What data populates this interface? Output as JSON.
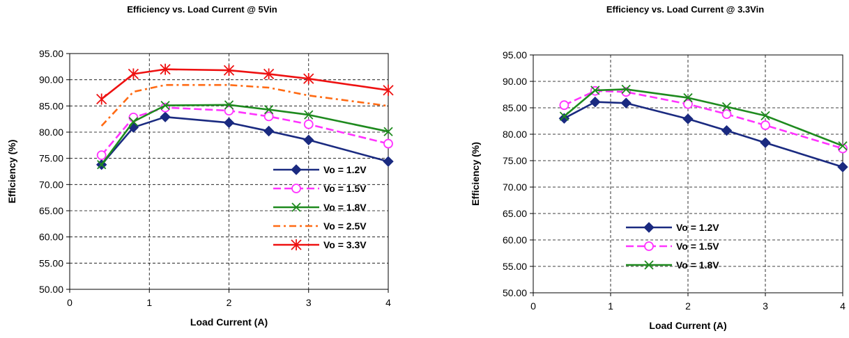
{
  "chart_data": [
    {
      "type": "line",
      "title": "Efficiency vs. Load Current  @ 5Vin",
      "xlabel": "Load Current (A)",
      "ylabel": "Efficiency (%)",
      "xlim": [
        0,
        4
      ],
      "ylim": [
        50,
        95
      ],
      "x_ticks": [
        "0",
        "1",
        "2",
        "3",
        "4"
      ],
      "y_ticks": [
        "50.00",
        "55.00",
        "60.00",
        "65.00",
        "70.00",
        "75.00",
        "80.00",
        "85.00",
        "90.00",
        "95.00"
      ],
      "grid": "dashed",
      "legend_position": "bottom-right",
      "series": [
        {
          "name": "Vo = 1.2V",
          "color": "#1a2a80",
          "dash": "solid",
          "marker": "diamond",
          "x": [
            0.4,
            0.8,
            1.2,
            2.0,
            2.5,
            3.0,
            4.0
          ],
          "y": [
            73.8,
            80.9,
            82.9,
            81.8,
            80.2,
            78.5,
            74.4
          ]
        },
        {
          "name": "Vo = 1.5V",
          "color": "#ff33ff",
          "dash": "dashed",
          "marker": "circle",
          "x": [
            0.4,
            0.8,
            1.2,
            2.0,
            2.5,
            3.0,
            4.0
          ],
          "y": [
            75.6,
            82.8,
            84.7,
            84.1,
            83.0,
            81.5,
            77.8
          ]
        },
        {
          "name": "Vo = 1.8V",
          "color": "#1e8a1e",
          "dash": "solid",
          "marker": "x",
          "x": [
            0.4,
            0.8,
            1.2,
            2.0,
            2.5,
            3.0,
            4.0
          ],
          "y": [
            73.8,
            82.0,
            85.1,
            85.2,
            84.3,
            83.3,
            80.1
          ]
        },
        {
          "name": "Vo = 2.5V",
          "color": "#ff6a13",
          "dash": "dashdot",
          "marker": "none",
          "x": [
            0.4,
            0.8,
            1.2,
            2.0,
            2.5,
            3.0,
            4.0
          ],
          "y": [
            81.2,
            87.7,
            89.0,
            89.0,
            88.5,
            87.0,
            85.0
          ]
        },
        {
          "name": "Vo = 3.3V",
          "color": "#ee1111",
          "dash": "solid",
          "marker": "star",
          "x": [
            0.4,
            0.8,
            1.2,
            2.0,
            2.5,
            3.0,
            4.0
          ],
          "y": [
            86.3,
            91.1,
            92.0,
            91.8,
            91.1,
            90.2,
            88.0
          ]
        }
      ]
    },
    {
      "type": "line",
      "title": "Efficiency vs. Load Current  @ 3.3Vin",
      "xlabel": "Load Current (A)",
      "ylabel": "Efficiency (%)",
      "xlim": [
        0,
        4
      ],
      "ylim": [
        50,
        95
      ],
      "x_ticks": [
        "0",
        "1",
        "2",
        "3",
        "4"
      ],
      "y_ticks": [
        "50.00",
        "55.00",
        "60.00",
        "65.00",
        "70.00",
        "75.00",
        "80.00",
        "85.00",
        "90.00",
        "95.00"
      ],
      "grid": "dashed",
      "legend_position": "bottom-right",
      "series": [
        {
          "name": "Vo = 1.2V",
          "color": "#1a2a80",
          "dash": "solid",
          "marker": "diamond",
          "x": [
            0.4,
            0.8,
            1.2,
            2.0,
            2.5,
            3.0,
            4.0
          ],
          "y": [
            83.0,
            86.1,
            85.9,
            82.9,
            80.7,
            78.4,
            73.8
          ]
        },
        {
          "name": "Vo = 1.5V",
          "color": "#ff33ff",
          "dash": "dashed",
          "marker": "circle",
          "x": [
            0.4,
            0.8,
            1.2,
            2.0,
            2.5,
            3.0,
            4.0
          ],
          "y": [
            85.5,
            88.2,
            88.0,
            85.7,
            83.8,
            81.7,
            77.3
          ]
        },
        {
          "name": "Vo = 1.8V",
          "color": "#1e8a1e",
          "dash": "solid",
          "marker": "x",
          "x": [
            0.4,
            0.8,
            1.2,
            2.0,
            2.5,
            3.0,
            4.0
          ],
          "y": [
            83.4,
            88.3,
            88.5,
            86.9,
            85.2,
            83.5,
            77.8
          ]
        }
      ]
    }
  ]
}
